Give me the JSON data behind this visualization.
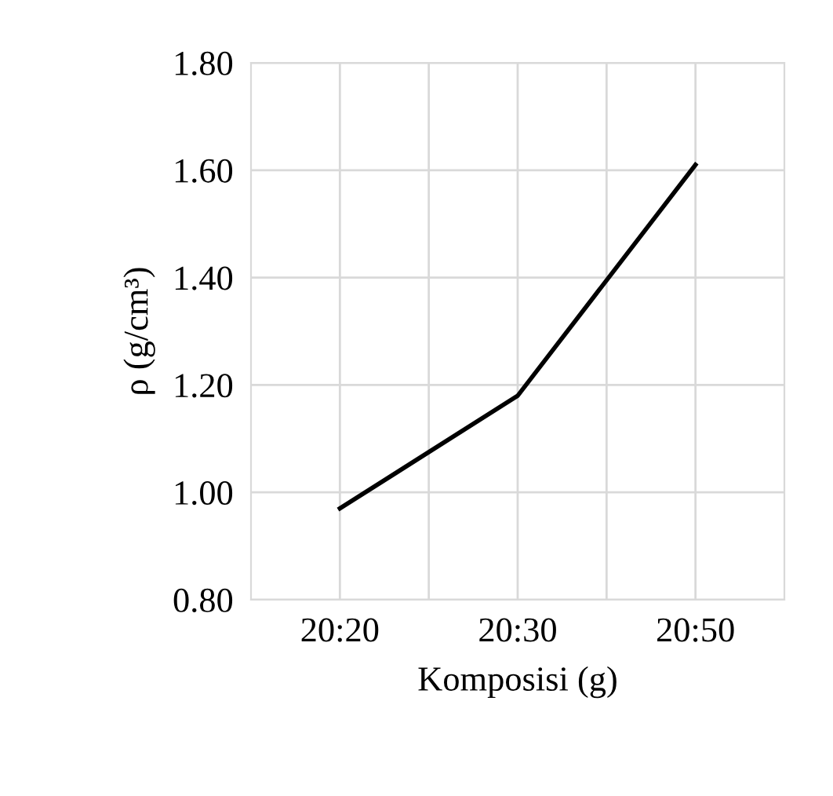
{
  "chart_data": {
    "type": "line",
    "xlabel": "Komposisi (g)",
    "ylabel": "ρ (g/cm³)",
    "categories": [
      "20:20",
      "20:30",
      "20:50"
    ],
    "series": [
      {
        "color": "#000000",
        "values": [
          0.97,
          1.18,
          1.61
        ]
      }
    ],
    "ylim": [
      0.8,
      1.8
    ],
    "yticks": [
      {
        "value": 0.8,
        "label": "0.80"
      },
      {
        "value": 1.0,
        "label": "1.00"
      },
      {
        "value": 1.2,
        "label": "1.20"
      },
      {
        "value": 1.4,
        "label": "1.40"
      },
      {
        "value": 1.6,
        "label": "1.60"
      },
      {
        "value": 1.8,
        "label": "1.80"
      }
    ],
    "grid": true,
    "marker": "none",
    "line_style": "solid",
    "legend": false
  }
}
